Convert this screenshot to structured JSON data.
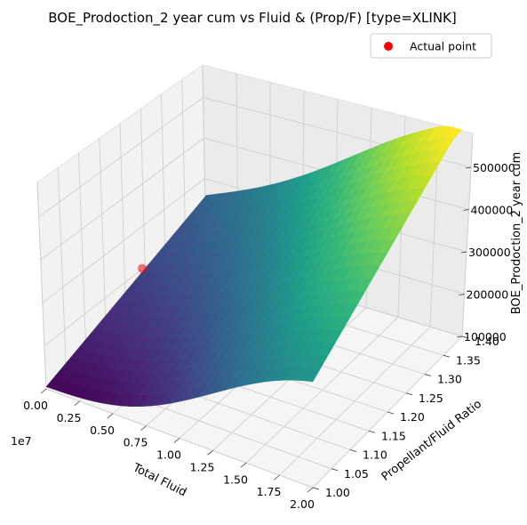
{
  "chart_data": {
    "type": "surface3d",
    "title": "BOE_Prodoction_2 year cum vs Fluid & (Prop/F)  [type=XLINK]",
    "xlabel": "Total Fluid",
    "ylabel": "Propellant/Fluid Ratio",
    "zlabel": "BOE_Prodoction_2 year cum",
    "x_offset_text": "1e7",
    "x_ticks": [
      "0.00",
      "0.25",
      "0.50",
      "0.75",
      "1.00",
      "1.25",
      "1.50",
      "1.75",
      "2.00"
    ],
    "y_ticks": [
      "1.00",
      "1.05",
      "1.10",
      "1.15",
      "1.20",
      "1.25",
      "1.30",
      "1.35",
      "1.40"
    ],
    "z_ticks": [
      "100000",
      "200000",
      "300000",
      "400000",
      "500000"
    ],
    "xlim": [
      0,
      20000000
    ],
    "ylim": [
      1.0,
      1.4
    ],
    "zlim": [
      100000,
      580000
    ],
    "colormap": "viridis",
    "grid": true,
    "legend_position": "top-right",
    "series": [
      {
        "name": "Actual point",
        "kind": "scatter",
        "color": "#ff0000",
        "points": [
          {
            "x": 0,
            "y": 1.24,
            "z": 200000
          }
        ]
      }
    ],
    "surface": {
      "x_range": [
        0,
        20000000
      ],
      "y_range": [
        1.0,
        1.4
      ],
      "z_corners": {
        "x_min_y_min": 105000,
        "x_max_y_min": 310000,
        "x_min_y_max": 250000,
        "x_max_y_max": 560000
      },
      "shape": "wave along x with mid-range plateau, rising steeply at high fluid and high ratio"
    }
  }
}
